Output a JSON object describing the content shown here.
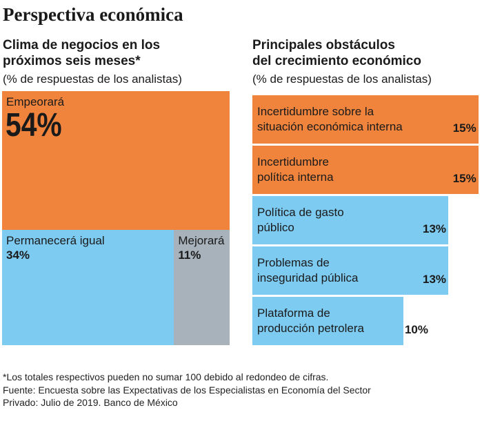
{
  "title": "Perspectiva económica",
  "chart_data": [
    {
      "type": "treemap",
      "title": "Clima de negocios en los\npróximos seis meses*",
      "subtitle": "(% de respuestas de los analistas)",
      "categories": [
        "Empeorará",
        "Permanecerá igual",
        "Mejorará"
      ],
      "values": [
        54,
        34,
        11
      ],
      "value_labels": [
        "54%",
        "34%",
        "11%"
      ],
      "colors": [
        "#f0843c",
        "#7ecbf2",
        "#a7b2ba"
      ]
    },
    {
      "type": "bar",
      "orientation": "horizontal",
      "title": "Principales obstáculos\ndel crecimiento económico",
      "subtitle": "(% de respuestas de los analistas)",
      "categories": [
        "Incertidumbre sobre la\nsituación económica interna",
        "Incertidumbre\npolítica interna",
        "Política de gasto\npúblico",
        "Problemas de\ninseguridad pública",
        "Plataforma de\nproducción petrolera"
      ],
      "values": [
        15,
        15,
        13,
        13,
        10
      ],
      "value_labels": [
        "15%",
        "15%",
        "13%",
        "13%",
        "10%"
      ],
      "colors": [
        "#f0843c",
        "#f0843c",
        "#7ecbf2",
        "#7ecbf2",
        "#7ecbf2"
      ]
    }
  ],
  "footnote": "*Los totales respectivos pueden no sumar 100 debido al redondeo de cifras.",
  "source": "Fuente: Encuesta sobre las Expectativas de los Especialistas en Economía del Sector\nPrivado: Julio de 2019. Banco de México"
}
